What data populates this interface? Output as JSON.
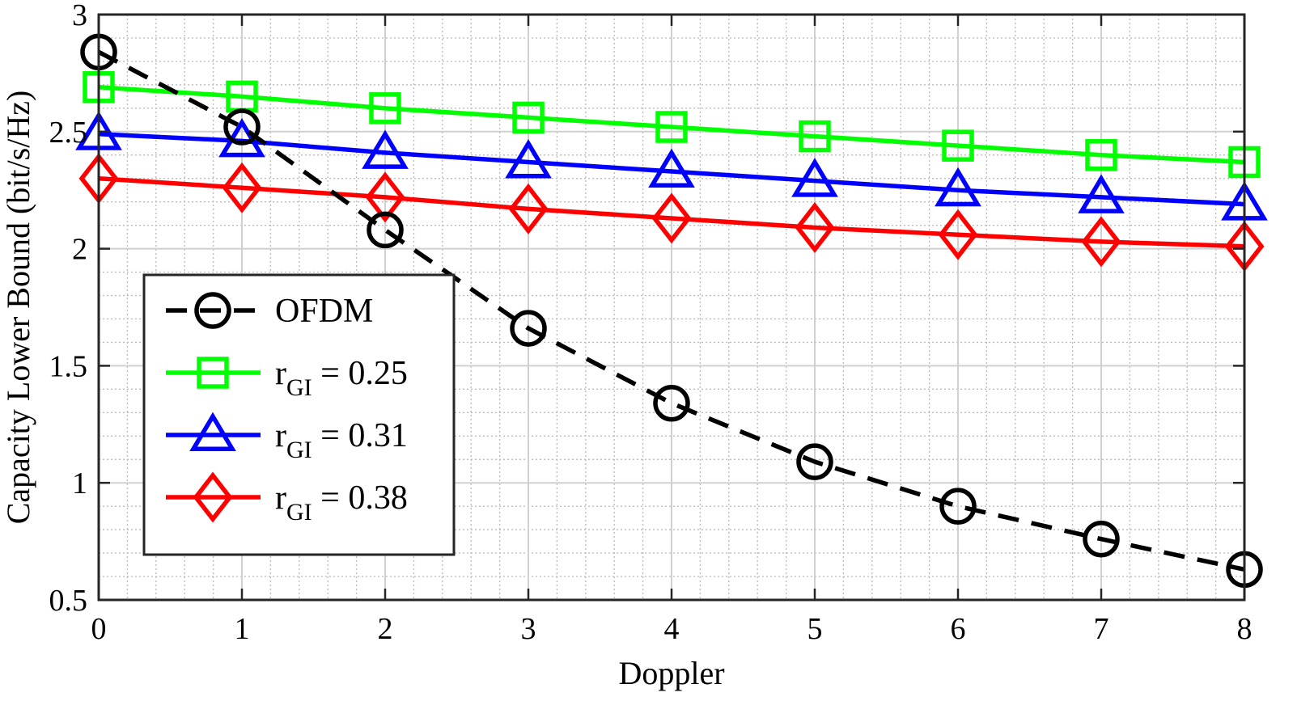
{
  "chart_data": {
    "type": "line",
    "title": "",
    "xlabel": "Doppler",
    "ylabel": "Capacity Lower Bound (bit/s/Hz)",
    "xlim": [
      0,
      8
    ],
    "ylim": [
      0.5,
      3
    ],
    "x": [
      0,
      1,
      2,
      3,
      4,
      5,
      6,
      7,
      8
    ],
    "xticks": [
      "0",
      "1",
      "2",
      "3",
      "4",
      "5",
      "6",
      "7",
      "8"
    ],
    "yticks": [
      {
        "value": 0.5,
        "label": "0.5"
      },
      {
        "value": 1,
        "label": "1"
      },
      {
        "value": 1.5,
        "label": "1.5"
      },
      {
        "value": 2,
        "label": "2"
      },
      {
        "value": 2.5,
        "label": "2.5"
      },
      {
        "value": 3,
        "label": "3"
      }
    ],
    "grid": true,
    "minor_grid": true,
    "legend_position": "center-left",
    "series": [
      {
        "name": "OFDM",
        "name_main": "OFDM",
        "name_sub": "",
        "name_rest": "",
        "color": "#000000",
        "marker": "circle",
        "dashed": true,
        "values": [
          2.84,
          2.52,
          2.08,
          1.66,
          1.34,
          1.09,
          0.9,
          0.76,
          0.63
        ]
      },
      {
        "name": "r_GI = 0.25",
        "name_main": "r",
        "name_sub": "GI",
        "name_rest": " = 0.25",
        "color": "#00ff00",
        "marker": "square",
        "dashed": false,
        "values": [
          2.69,
          2.65,
          2.6,
          2.56,
          2.52,
          2.48,
          2.44,
          2.4,
          2.37
        ]
      },
      {
        "name": "r_GI = 0.31",
        "name_main": "r",
        "name_sub": "GI",
        "name_rest": " = 0.31",
        "color": "#0000ff",
        "marker": "triangle",
        "dashed": false,
        "values": [
          2.49,
          2.46,
          2.41,
          2.37,
          2.33,
          2.29,
          2.25,
          2.22,
          2.19
        ]
      },
      {
        "name": "r_GI = 0.38",
        "name_main": "r",
        "name_sub": "GI",
        "name_rest": " = 0.38",
        "color": "#ff0000",
        "marker": "diamond",
        "dashed": false,
        "values": [
          2.3,
          2.26,
          2.22,
          2.17,
          2.13,
          2.09,
          2.06,
          2.03,
          2.01
        ]
      }
    ]
  }
}
